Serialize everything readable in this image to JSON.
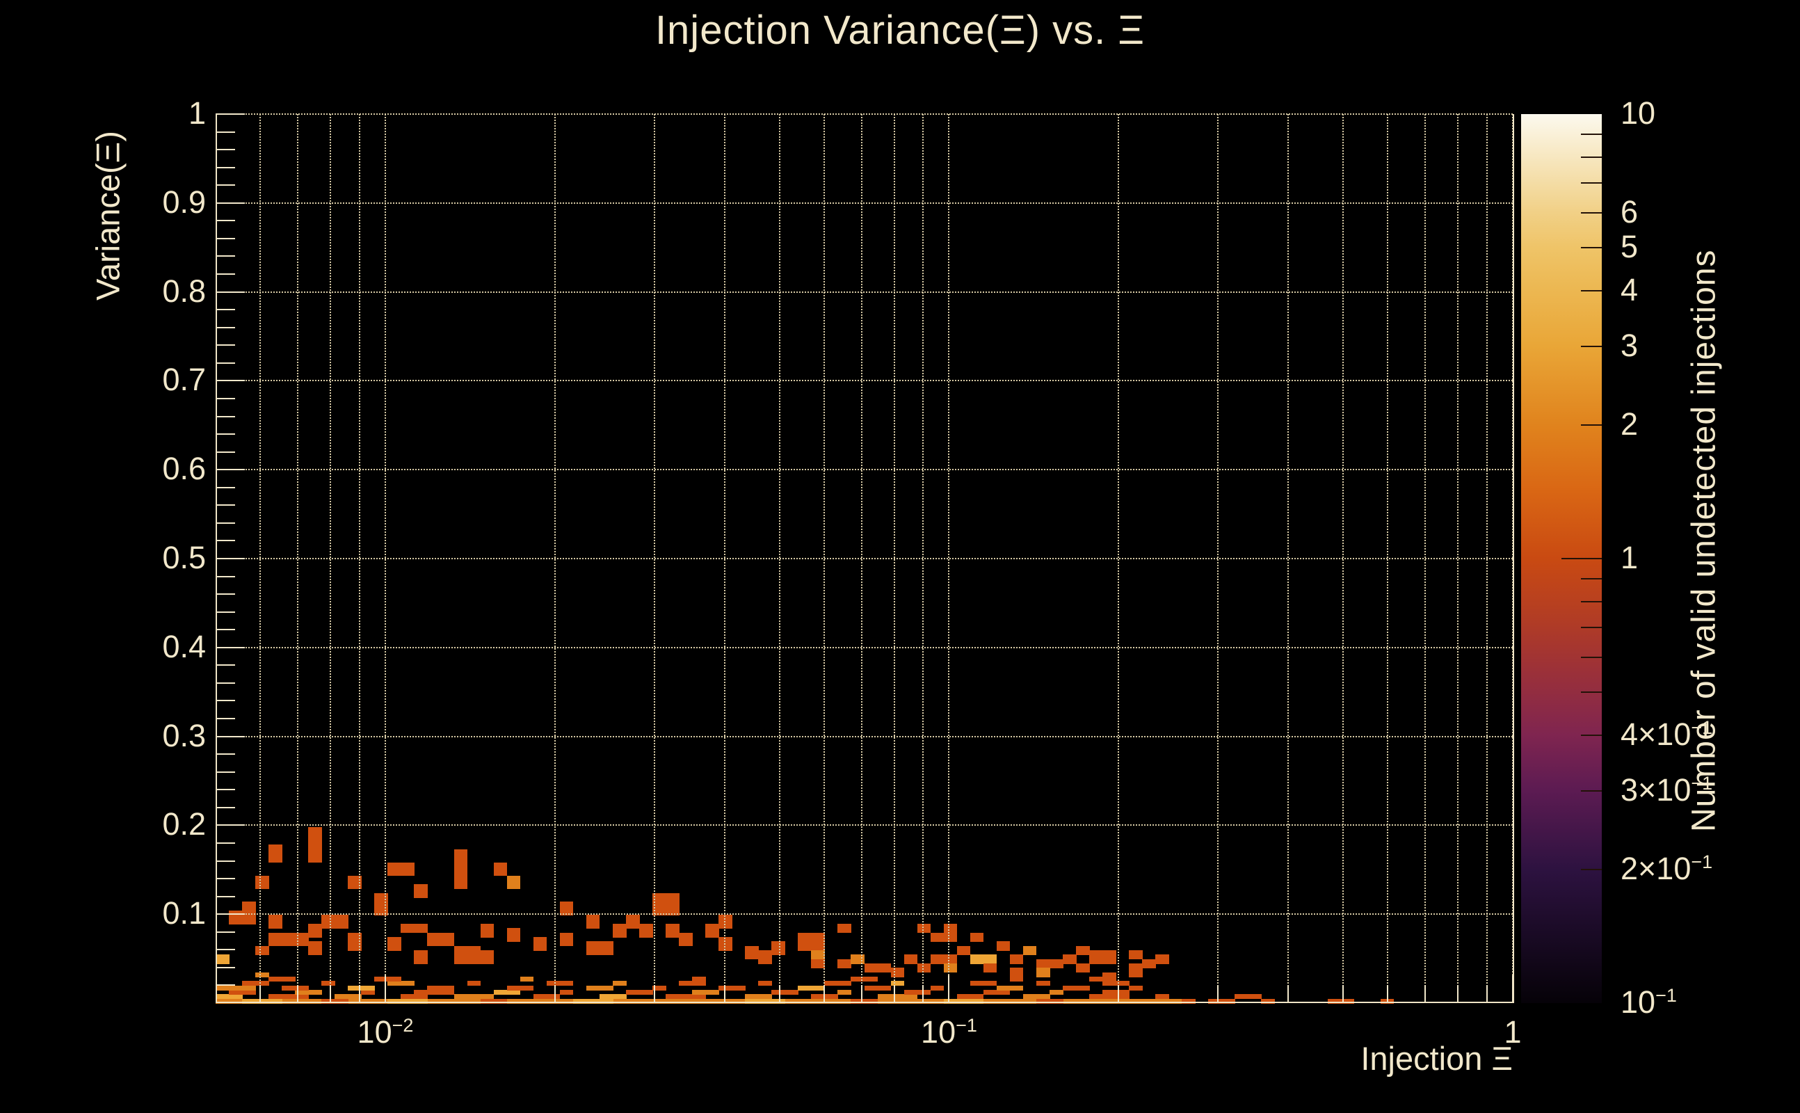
{
  "title": "Injection Variance(Ξ) vs. Ξ",
  "colors": {
    "background": "#000000",
    "text": "#f2e8cb",
    "axis": "#f0e5c6",
    "grid": "#d8cba6"
  },
  "chart_data": {
    "type": "heatmap",
    "title": "Injection Variance(Ξ) vs. Ξ",
    "xlabel": "Injection Ξ",
    "ylabel": "Variance(Ξ)",
    "zlabel": "Number of valid undetected injections",
    "x_scale": "log",
    "x_range": [
      0.005,
      1.0
    ],
    "y_scale": "linear",
    "y_range": [
      0,
      1
    ],
    "z_scale": "log",
    "z_range": [
      0.1,
      10
    ],
    "grid": "on",
    "x_grid": [
      0.006,
      0.007,
      0.008,
      0.009,
      0.01,
      0.02,
      0.03,
      0.04,
      0.05,
      0.06,
      0.07,
      0.08,
      0.09,
      0.1,
      0.2,
      0.3,
      0.4,
      0.5,
      0.6,
      0.7,
      0.8,
      0.9,
      1.0
    ],
    "x_decades": [
      0.01,
      0.1,
      1.0
    ],
    "x_tick_labels": [
      {
        "v": 0.01,
        "m": "10",
        "e": "−2"
      },
      {
        "v": 0.1,
        "m": "10",
        "e": "−1"
      },
      {
        "v": 1.0,
        "m": "1",
        "e": ""
      }
    ],
    "y_ticks": [
      {
        "v": 0.1,
        "l": "0.1"
      },
      {
        "v": 0.2,
        "l": "0.2"
      },
      {
        "v": 0.3,
        "l": "0.3"
      },
      {
        "v": 0.4,
        "l": "0.4"
      },
      {
        "v": 0.5,
        "l": "0.5"
      },
      {
        "v": 0.6,
        "l": "0.6"
      },
      {
        "v": 0.7,
        "l": "0.7"
      },
      {
        "v": 0.8,
        "l": "0.8"
      },
      {
        "v": 0.9,
        "l": "0.9"
      },
      {
        "v": 1.0,
        "l": "1"
      }
    ],
    "y_minor_step": 0.02,
    "x_bins": 98,
    "y_rows": 202,
    "palette": {
      "1": "#d0500f",
      "2": "#e0801c",
      "3": "#efa636",
      "4": "#f3c869"
    },
    "colorbar": {
      "gradient": [
        {
          "pos": 0.0,
          "color": "#060208"
        },
        {
          "pos": 0.075,
          "color": "#190a24"
        },
        {
          "pos": 0.15,
          "color": "#2d1240"
        },
        {
          "pos": 0.239,
          "color": "#5c1b52"
        },
        {
          "pos": 0.301,
          "color": "#7f2550"
        },
        {
          "pos": 0.375,
          "color": "#9c3138"
        },
        {
          "pos": 0.43,
          "color": "#b13c25"
        },
        {
          "pos": 0.5,
          "color": "#c94a12"
        },
        {
          "pos": 0.575,
          "color": "#d96614"
        },
        {
          "pos": 0.65,
          "color": "#e0831d"
        },
        {
          "pos": 0.739,
          "color": "#e9a637"
        },
        {
          "pos": 0.801,
          "color": "#ecb751"
        },
        {
          "pos": 0.85,
          "color": "#efc468"
        },
        {
          "pos": 0.889,
          "color": "#f1d086"
        },
        {
          "pos": 0.943,
          "color": "#f6e4b8"
        },
        {
          "pos": 1.0,
          "color": "#fcf9ee"
        }
      ],
      "ticks": [
        {
          "v": 10,
          "m": "10",
          "major": true,
          "edge": true
        },
        {
          "v": 9
        },
        {
          "v": 8
        },
        {
          "v": 7
        },
        {
          "v": 6,
          "m": "6"
        },
        {
          "v": 5,
          "m": "5"
        },
        {
          "v": 4,
          "m": "4"
        },
        {
          "v": 3,
          "m": "3"
        },
        {
          "v": 2,
          "m": "2"
        },
        {
          "v": 1,
          "m": "1",
          "major": true
        },
        {
          "v": 0.9
        },
        {
          "v": 0.8
        },
        {
          "v": 0.7
        },
        {
          "v": 0.6
        },
        {
          "v": 0.5
        },
        {
          "v": 0.4,
          "m": "4×10",
          "e": "−1"
        },
        {
          "v": 0.3,
          "m": "3×10",
          "e": "−1"
        },
        {
          "v": 0.2,
          "m": "2×10",
          "e": "−1"
        },
        {
          "v": 0.1,
          "m": "10",
          "e": "−1",
          "major": true,
          "edge": true
        }
      ]
    },
    "cells": [
      [
        0,
        0,
        73,
        1,
        2
      ],
      [
        2,
        0,
        3,
        1,
        3
      ],
      [
        8,
        0,
        2,
        1,
        1
      ],
      [
        13,
        0,
        3,
        1,
        3
      ],
      [
        20,
        0,
        2,
        1,
        1
      ],
      [
        27,
        0,
        3,
        1,
        3
      ],
      [
        34,
        0,
        2,
        1,
        2
      ],
      [
        40,
        0,
        3,
        1,
        3
      ],
      [
        48,
        0,
        2,
        1,
        1
      ],
      [
        55,
        0,
        3,
        1,
        3
      ],
      [
        62,
        0,
        2,
        1,
        1
      ],
      [
        68,
        0,
        3,
        1,
        2
      ],
      [
        73,
        0,
        1,
        1,
        1
      ],
      [
        75,
        0,
        2,
        1,
        1
      ],
      [
        79,
        0,
        1,
        1,
        1
      ],
      [
        84,
        0,
        2,
        1,
        1
      ],
      [
        88,
        0,
        1,
        1,
        1
      ],
      [
        0,
        1,
        2,
        1,
        3
      ],
      [
        4,
        1,
        3,
        1,
        1
      ],
      [
        9,
        1,
        2,
        1,
        2
      ],
      [
        14,
        1,
        2,
        1,
        1
      ],
      [
        18,
        1,
        3,
        1,
        2
      ],
      [
        24,
        1,
        2,
        1,
        1
      ],
      [
        29,
        1,
        2,
        1,
        3
      ],
      [
        34,
        1,
        3,
        1,
        1
      ],
      [
        40,
        1,
        2,
        1,
        2
      ],
      [
        45,
        1,
        2,
        1,
        1
      ],
      [
        50,
        1,
        3,
        1,
        2
      ],
      [
        56,
        1,
        2,
        1,
        1
      ],
      [
        61,
        1,
        2,
        1,
        2
      ],
      [
        66,
        1,
        3,
        1,
        1
      ],
      [
        71,
        1,
        1,
        1,
        1
      ],
      [
        77,
        1,
        2,
        1,
        1
      ],
      [
        1,
        2,
        2,
        1,
        1
      ],
      [
        6,
        2,
        2,
        1,
        2
      ],
      [
        11,
        2,
        1,
        1,
        1
      ],
      [
        15,
        2,
        3,
        1,
        1
      ],
      [
        21,
        2,
        2,
        1,
        3
      ],
      [
        26,
        2,
        1,
        1,
        1
      ],
      [
        31,
        2,
        2,
        1,
        1
      ],
      [
        36,
        2,
        2,
        1,
        2
      ],
      [
        42,
        2,
        2,
        1,
        1
      ],
      [
        47,
        2,
        1,
        1,
        2
      ],
      [
        52,
        2,
        2,
        1,
        1
      ],
      [
        58,
        2,
        2,
        1,
        1
      ],
      [
        63,
        2,
        1,
        1,
        2
      ],
      [
        67,
        2,
        2,
        1,
        1
      ],
      [
        0,
        3,
        3,
        1,
        2
      ],
      [
        5,
        3,
        2,
        1,
        1
      ],
      [
        10,
        3,
        2,
        1,
        3
      ],
      [
        16,
        3,
        2,
        1,
        1
      ],
      [
        22,
        3,
        2,
        1,
        1
      ],
      [
        28,
        3,
        2,
        1,
        2
      ],
      [
        33,
        3,
        1,
        1,
        1
      ],
      [
        38,
        3,
        2,
        1,
        1
      ],
      [
        44,
        3,
        2,
        1,
        3
      ],
      [
        49,
        3,
        2,
        1,
        1
      ],
      [
        54,
        3,
        1,
        1,
        1
      ],
      [
        59,
        3,
        2,
        1,
        2
      ],
      [
        64,
        3,
        2,
        1,
        1
      ],
      [
        69,
        3,
        1,
        1,
        1
      ],
      [
        2,
        4,
        2,
        1,
        1
      ],
      [
        8,
        4,
        1,
        1,
        1
      ],
      [
        13,
        4,
        2,
        1,
        2
      ],
      [
        19,
        4,
        1,
        1,
        1
      ],
      [
        25,
        4,
        2,
        1,
        1
      ],
      [
        30,
        4,
        1,
        1,
        2
      ],
      [
        35,
        4,
        2,
        1,
        1
      ],
      [
        41,
        4,
        1,
        1,
        1
      ],
      [
        46,
        4,
        2,
        1,
        1
      ],
      [
        51,
        4,
        1,
        1,
        3
      ],
      [
        57,
        4,
        2,
        1,
        1
      ],
      [
        62,
        4,
        1,
        1,
        1
      ],
      [
        68,
        4,
        1,
        1,
        1
      ],
      [
        4,
        5,
        2,
        1,
        1
      ],
      [
        12,
        5,
        2,
        1,
        1
      ],
      [
        23,
        5,
        1,
        1,
        2
      ],
      [
        36,
        5,
        1,
        1,
        1
      ],
      [
        48,
        5,
        2,
        1,
        1
      ],
      [
        60,
        5,
        1,
        1,
        1
      ],
      [
        66,
        5,
        1,
        1,
        1
      ],
      [
        0,
        9,
        1,
        2,
        3
      ],
      [
        1,
        18,
        2,
        3,
        1
      ],
      [
        2,
        20,
        1,
        3,
        1
      ],
      [
        3,
        26,
        1,
        3,
        1
      ],
      [
        3,
        11,
        1,
        2,
        1
      ],
      [
        3,
        6,
        1,
        1,
        2
      ],
      [
        4,
        32,
        1,
        4,
        1
      ],
      [
        4,
        17,
        1,
        3,
        1
      ],
      [
        4,
        13,
        3,
        3,
        1
      ],
      [
        6,
        13,
        1,
        3,
        1
      ],
      [
        7,
        32,
        1,
        8,
        1
      ],
      [
        7,
        15,
        1,
        3,
        1
      ],
      [
        7,
        11,
        1,
        3,
        1
      ],
      [
        8,
        17,
        1,
        3,
        1
      ],
      [
        9,
        17,
        1,
        3,
        1
      ],
      [
        10,
        26,
        1,
        3,
        1
      ],
      [
        10,
        12,
        1,
        4,
        1
      ],
      [
        12,
        20,
        1,
        5,
        1
      ],
      [
        13,
        29,
        2,
        3,
        1
      ],
      [
        13,
        12,
        1,
        3,
        1
      ],
      [
        14,
        16,
        2,
        2,
        1
      ],
      [
        15,
        24,
        1,
        3,
        1
      ],
      [
        15,
        9,
        1,
        3,
        1
      ],
      [
        16,
        13,
        2,
        3,
        1
      ],
      [
        18,
        26,
        1,
        9,
        1
      ],
      [
        18,
        9,
        2,
        4,
        1
      ],
      [
        20,
        15,
        1,
        3,
        1
      ],
      [
        20,
        9,
        1,
        3,
        1
      ],
      [
        21,
        29,
        1,
        3,
        1
      ],
      [
        22,
        26,
        1,
        3,
        2
      ],
      [
        22,
        14,
        1,
        3,
        1
      ],
      [
        24,
        12,
        1,
        3,
        1
      ],
      [
        26,
        20,
        1,
        3,
        1
      ],
      [
        26,
        13,
        1,
        3,
        1
      ],
      [
        28,
        17,
        1,
        3,
        1
      ],
      [
        28,
        11,
        2,
        3,
        1
      ],
      [
        30,
        15,
        1,
        3,
        1
      ],
      [
        31,
        17,
        1,
        3,
        1
      ],
      [
        32,
        15,
        1,
        3,
        1
      ],
      [
        33,
        20,
        2,
        5,
        1
      ],
      [
        34,
        15,
        1,
        3,
        1
      ],
      [
        35,
        13,
        1,
        3,
        1
      ],
      [
        37,
        15,
        1,
        3,
        1
      ],
      [
        38,
        17,
        1,
        3,
        1
      ],
      [
        38,
        12,
        1,
        3,
        1
      ],
      [
        40,
        10,
        1,
        3,
        1
      ],
      [
        41,
        9,
        1,
        3,
        1
      ],
      [
        42,
        11,
        1,
        3,
        1
      ],
      [
        44,
        12,
        2,
        4,
        1
      ],
      [
        45,
        10,
        1,
        2,
        2
      ],
      [
        45,
        8,
        1,
        2,
        1
      ],
      [
        47,
        16,
        1,
        2,
        1
      ],
      [
        47,
        8,
        1,
        2,
        1
      ],
      [
        48,
        9,
        1,
        2,
        2
      ],
      [
        49,
        7,
        2,
        2,
        1
      ],
      [
        51,
        6,
        1,
        2,
        1
      ],
      [
        52,
        9,
        1,
        2,
        1
      ],
      [
        53,
        7,
        1,
        2,
        1
      ],
      [
        53,
        16,
        1,
        2,
        1
      ],
      [
        54,
        14,
        1,
        2,
        1
      ],
      [
        54,
        9,
        2,
        2,
        1
      ],
      [
        55,
        7,
        1,
        2,
        2
      ],
      [
        55,
        14,
        1,
        4,
        1
      ],
      [
        56,
        11,
        1,
        2,
        1
      ],
      [
        57,
        9,
        2,
        2,
        3
      ],
      [
        57,
        14,
        1,
        2,
        1
      ],
      [
        58,
        7,
        1,
        2,
        1
      ],
      [
        59,
        12,
        1,
        2,
        1
      ],
      [
        60,
        9,
        1,
        2,
        1
      ],
      [
        60,
        6,
        1,
        2,
        1
      ],
      [
        61,
        11,
        1,
        2,
        2
      ],
      [
        62,
        8,
        2,
        2,
        1
      ],
      [
        62,
        6,
        1,
        2,
        2
      ],
      [
        64,
        9,
        1,
        2,
        1
      ],
      [
        65,
        11,
        1,
        2,
        1
      ],
      [
        65,
        7,
        1,
        2,
        1
      ],
      [
        66,
        9,
        2,
        3,
        1
      ],
      [
        67,
        4,
        1,
        3,
        1
      ],
      [
        69,
        10,
        1,
        2,
        1
      ],
      [
        69,
        6,
        1,
        3,
        1
      ],
      [
        70,
        8,
        1,
        2,
        1
      ],
      [
        71,
        9,
        1,
        2,
        1
      ]
    ]
  }
}
